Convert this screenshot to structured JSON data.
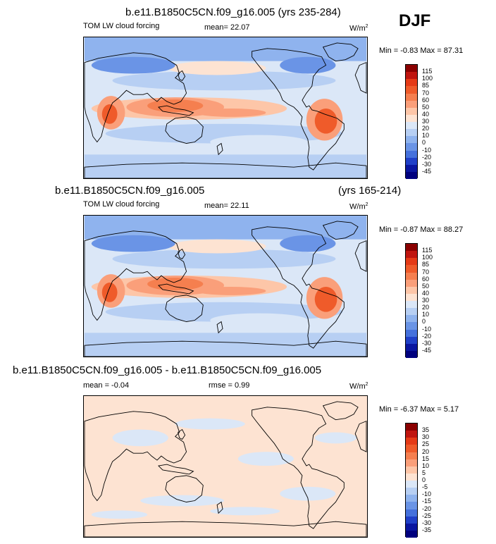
{
  "season": "DJF",
  "panels": [
    {
      "title": "b.e11.B1850C5CN.f09_g16.005 (yrs 235-284)",
      "title_right": "",
      "variable": "TOM LW cloud forcing",
      "stat1": "mean=  22.07",
      "stat2": "",
      "units": "W/m",
      "units_exp": "2",
      "minmax": "Min =  -0.83 Max =  87.31"
    },
    {
      "title": "b.e11.B1850C5CN.f09_g16.005",
      "title_right": "(yrs 165-214)",
      "variable": "TOM LW cloud forcing",
      "stat1": "mean=  22.11",
      "stat2": "",
      "units": "W/m",
      "units_exp": "2",
      "minmax": "Min =  -0.87 Max =  88.27"
    },
    {
      "title": "b.e11.B1850C5CN.f09_g16.005 - b.e11.B1850C5CN.f09_g16.005",
      "title_right": "",
      "variable": "",
      "stat1": "mean =  -0.04",
      "stat2": "rmse =  0.99",
      "units": "W/m",
      "units_exp": "2",
      "minmax": "Min =  -6.37 Max =   5.17"
    }
  ],
  "chart_data": [
    {
      "type": "heatmap",
      "projection": "cylindrical equidistant, centered 180",
      "colorbar_levels": [
        "115",
        "100",
        "85",
        "70",
        "60",
        "50",
        "40",
        "30",
        "20",
        "10",
        "0",
        "-10",
        "-20",
        "-30",
        "-45"
      ],
      "colorbar_colors": [
        "#8b0000",
        "#c0150f",
        "#e53a16",
        "#ef5b2a",
        "#f57f4f",
        "#fa9f7a",
        "#fdc6a8",
        "#fde3d2",
        "#dbe7f7",
        "#b7cff3",
        "#8fb3ee",
        "#6a94e6",
        "#4571dc",
        "#2040c8",
        "#0a16a0",
        "#00007e"
      ],
      "domain_mean": 22.07,
      "min": -0.83,
      "max": 87.31
    },
    {
      "type": "heatmap",
      "projection": "cylindrical equidistant, centered 180",
      "colorbar_levels": [
        "115",
        "100",
        "85",
        "70",
        "60",
        "50",
        "40",
        "30",
        "20",
        "10",
        "0",
        "-10",
        "-20",
        "-30",
        "-45"
      ],
      "colorbar_colors": [
        "#8b0000",
        "#c0150f",
        "#e53a16",
        "#ef5b2a",
        "#f57f4f",
        "#fa9f7a",
        "#fdc6a8",
        "#fde3d2",
        "#dbe7f7",
        "#b7cff3",
        "#8fb3ee",
        "#6a94e6",
        "#4571dc",
        "#2040c8",
        "#0a16a0",
        "#00007e"
      ],
      "domain_mean": 22.11,
      "min": -0.87,
      "max": 88.27
    },
    {
      "type": "heatmap",
      "projection": "cylindrical equidistant, centered 180",
      "colorbar_levels": [
        "35",
        "30",
        "25",
        "20",
        "15",
        "10",
        "5",
        "0",
        "-5",
        "-10",
        "-15",
        "-20",
        "-25",
        "-30",
        "-35"
      ],
      "colorbar_colors": [
        "#8b0000",
        "#c0150f",
        "#e53a16",
        "#ef5b2a",
        "#f57f4f",
        "#fa9f7a",
        "#fdc6a8",
        "#fde3d2",
        "#dbe7f7",
        "#b7cff3",
        "#8fb3ee",
        "#6a94e6",
        "#4571dc",
        "#2040c8",
        "#0a16a0",
        "#00007e"
      ],
      "domain_mean": -0.04,
      "rmse": 0.99,
      "min": -6.37,
      "max": 5.17
    }
  ]
}
